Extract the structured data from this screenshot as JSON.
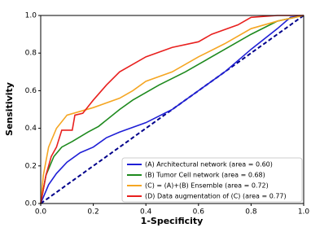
{
  "chart_data": {
    "type": "line",
    "xlabel": "1-Specificity",
    "ylabel": "Sensitivity",
    "xlim": [
      0,
      1
    ],
    "ylim": [
      0,
      1
    ],
    "xticks": [
      {
        "value": 0,
        "label": "0.0"
      },
      0.2,
      0.4,
      0.6,
      0.8,
      {
        "value": 1,
        "label": "1.0"
      }
    ],
    "yticks": [
      {
        "value": 0,
        "label": "0.0"
      },
      0.2,
      0.4,
      0.6,
      0.8,
      {
        "value": 1,
        "label": "1.0"
      }
    ],
    "legend": "lower right",
    "series": [
      {
        "name": "(A) Architectural network (area = 0.60)",
        "color": "#1f1fd6",
        "x": [
          0,
          0.03,
          0.06,
          0.1,
          0.15,
          0.2,
          0.25,
          0.3,
          0.4,
          0.5,
          0.6,
          0.7,
          0.8,
          0.9,
          0.95,
          1
        ],
        "values": [
          0,
          0.1,
          0.16,
          0.22,
          0.27,
          0.3,
          0.35,
          0.38,
          0.43,
          0.5,
          0.6,
          0.7,
          0.82,
          0.93,
          0.99,
          1
        ]
      },
      {
        "name": "(B) Tumor Cell network (area = 0.68)",
        "color": "#1e8a1e",
        "x": [
          0,
          0.02,
          0.05,
          0.08,
          0.12,
          0.18,
          0.22,
          0.3,
          0.35,
          0.45,
          0.55,
          0.6,
          0.7,
          0.8,
          0.9,
          1
        ],
        "values": [
          0,
          0.15,
          0.25,
          0.3,
          0.33,
          0.38,
          0.41,
          0.5,
          0.55,
          0.63,
          0.7,
          0.74,
          0.82,
          0.9,
          0.97,
          1
        ]
      },
      {
        "name": "(C) = (A)+(B) Ensemble (area = 0.72)",
        "color": "#f5a623",
        "x": [
          0,
          0.01,
          0.03,
          0.06,
          0.1,
          0.15,
          0.2,
          0.3,
          0.35,
          0.4,
          0.5,
          0.6,
          0.7,
          0.8,
          0.9,
          1
        ],
        "values": [
          0,
          0.15,
          0.3,
          0.4,
          0.47,
          0.49,
          0.51,
          0.56,
          0.6,
          0.65,
          0.7,
          0.78,
          0.85,
          0.93,
          0.97,
          1
        ]
      },
      {
        "name": "(D) Data augmentation of (C) (area = 0.77)",
        "color": "#e8201e",
        "x": [
          0,
          0.02,
          0.04,
          0.06,
          0.08,
          0.12,
          0.13,
          0.16,
          0.2,
          0.25,
          0.3,
          0.35,
          0.4,
          0.5,
          0.6,
          0.65,
          0.75,
          0.8,
          0.9,
          1
        ],
        "values": [
          0,
          0.15,
          0.25,
          0.3,
          0.39,
          0.39,
          0.47,
          0.48,
          0.55,
          0.63,
          0.7,
          0.74,
          0.78,
          0.83,
          0.86,
          0.9,
          0.95,
          0.99,
          1,
          1
        ]
      }
    ]
  }
}
